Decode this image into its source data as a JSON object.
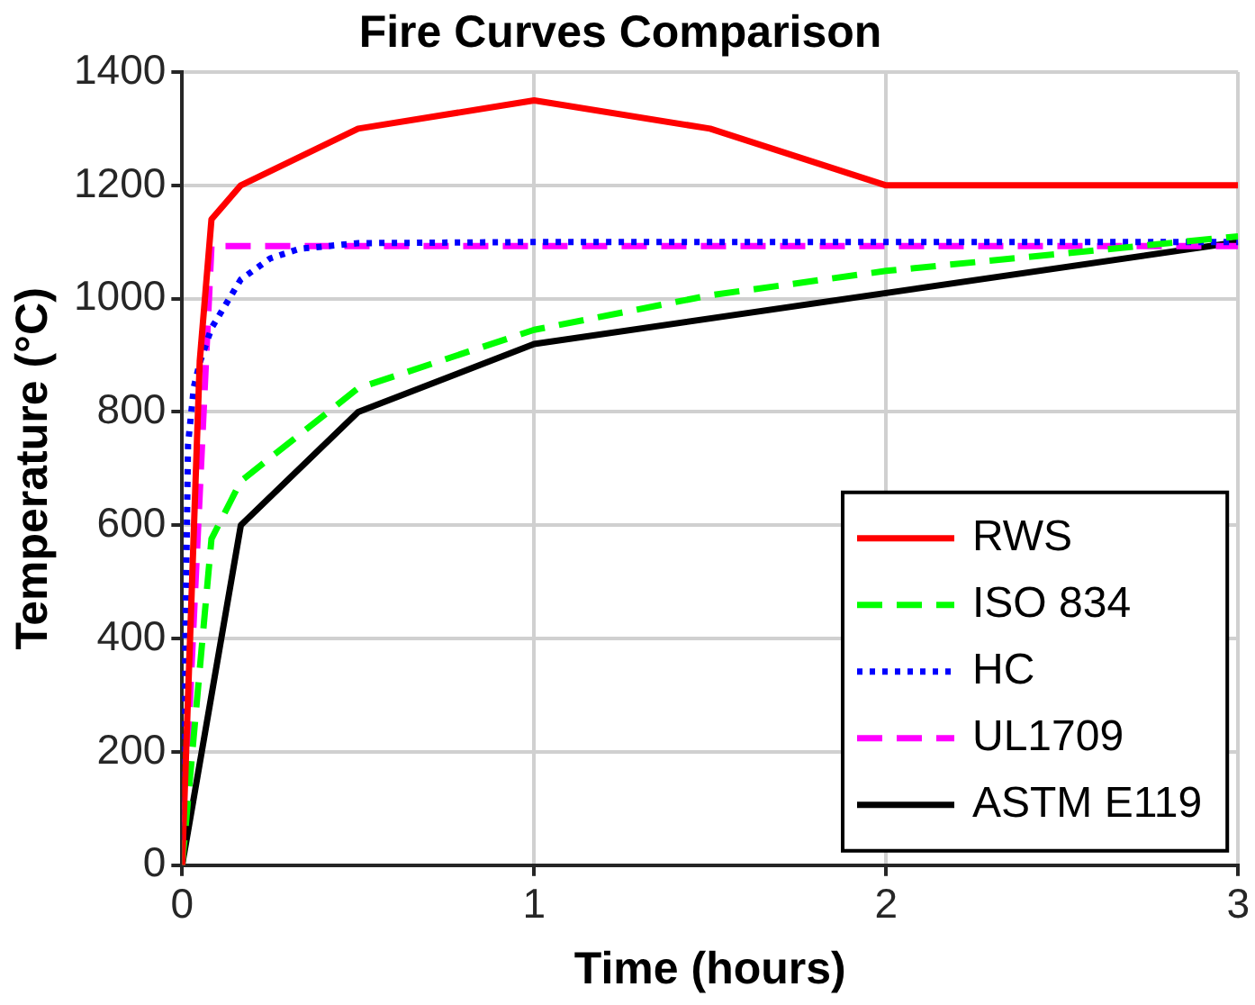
{
  "chart_data": {
    "type": "line",
    "title": "Fire Curves Comparison",
    "xlabel": "Time (hours)",
    "ylabel": "Temperature (°C)",
    "xlim": [
      0,
      3
    ],
    "xticks": [
      0,
      1,
      2,
      3
    ],
    "ylim": [
      0,
      1400
    ],
    "yticks": [
      0,
      200,
      400,
      600,
      800,
      1000,
      1200,
      1400
    ],
    "grid": true,
    "legend": "bottom right",
    "marker": "none",
    "series": [
      {
        "name": "RWS",
        "color": "#ff0000",
        "line_style": "solid",
        "x": [
          0,
          0.05,
          0.0833,
          0.1667,
          0.5,
          1,
          1.5,
          2,
          3
        ],
        "values": [
          0,
          890,
          1140,
          1200,
          1300,
          1350,
          1300,
          1200,
          1200
        ]
      },
      {
        "name": "ISO 834",
        "color": "#00ff00",
        "line_style": "dashed",
        "x": [
          0,
          0.0833,
          0.1667,
          0.5,
          1,
          1.5,
          2,
          3
        ],
        "values": [
          0,
          576,
          678,
          842,
          945,
          1006,
          1049,
          1110
        ]
      },
      {
        "name": "HC",
        "color": "#0000ff",
        "line_style": "dotted",
        "x": [
          0,
          0.0167,
          0.0333,
          0.05,
          0.0833,
          0.1667,
          0.25,
          0.3333,
          0.5,
          1,
          3
        ],
        "values": [
          0,
          743,
          844,
          887,
          948,
          1034,
          1071,
          1088,
          1098,
          1100,
          1100
        ]
      },
      {
        "name": "UL1709",
        "color": "#ff00ff",
        "line_style": "dashed",
        "x": [
          0,
          0.0833,
          3
        ],
        "values": [
          0,
          1093,
          1093
        ]
      },
      {
        "name": "ASTM E119",
        "color": "#000000",
        "line_style": "solid",
        "x": [
          0,
          0.1667,
          0.5,
          1,
          3
        ],
        "values": [
          0,
          600,
          800,
          920,
          1100
        ]
      }
    ]
  }
}
